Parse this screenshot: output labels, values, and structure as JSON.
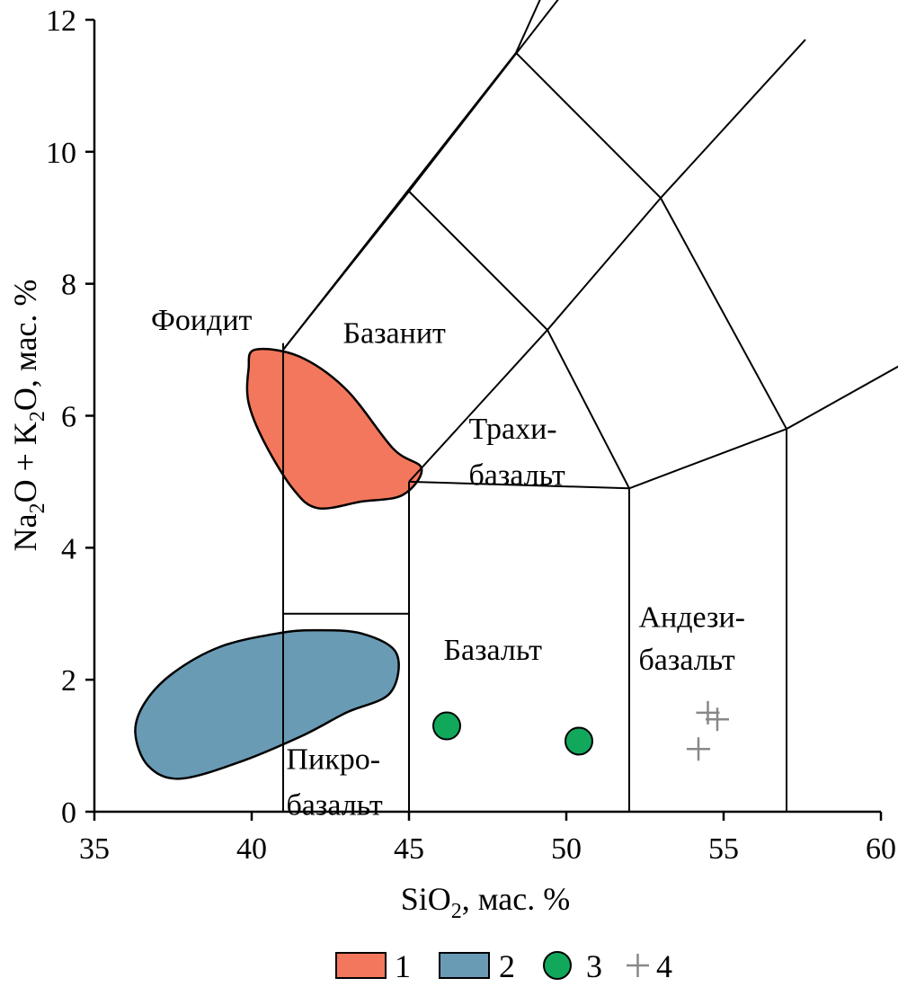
{
  "chart_data": {
    "type": "scatter",
    "diagram": "TAS",
    "xlim": [
      35,
      60
    ],
    "ylim": [
      0,
      12
    ],
    "x_ticks": [
      35,
      40,
      45,
      50,
      55,
      60
    ],
    "y_ticks": [
      0,
      2,
      4,
      6,
      8,
      10,
      12
    ],
    "x_ticks_labels": [
      "35",
      "40",
      "45",
      "50",
      "55",
      "60"
    ],
    "y_ticks_labels": [
      "0",
      "2",
      "4",
      "6",
      "8",
      "10",
      "12"
    ],
    "xlabel": {
      "main": "SiO",
      "sub": "2",
      "rest": ", мас. %"
    },
    "ylabel": {
      "p1": "Na",
      "s1": "2",
      "p2": "O + K",
      "s2": "2",
      "p3": "O, мас. %"
    },
    "grid": false,
    "legend_position": "bottom",
    "colors": {
      "field_1": "#f3775c",
      "field_2": "#6a9bb5",
      "point_3": "#12a85c",
      "point_4": "#888888",
      "lines": "#000000"
    },
    "boundaries": [
      [
        [
          41,
          0
        ],
        [
          41,
          7
        ]
      ],
      [
        [
          41,
          3
        ],
        [
          45,
          3
        ]
      ],
      [
        [
          45,
          0
        ],
        [
          45,
          5
        ]
      ],
      [
        [
          45,
          5
        ],
        [
          52,
          4.9
        ]
      ],
      [
        [
          52,
          0
        ],
        [
          52,
          4.9
        ]
      ],
      [
        [
          57,
          0
        ],
        [
          57,
          5.8
        ]
      ],
      [
        [
          52,
          4.9
        ],
        [
          57,
          5.8
        ]
      ],
      [
        [
          57,
          5.8
        ],
        [
          63,
          7.4
        ]
      ],
      [
        [
          41,
          7
        ],
        [
          45,
          9.4
        ]
      ],
      [
        [
          45,
          5
        ],
        [
          49.4,
          7.3
        ]
      ],
      [
        [
          49.4,
          7.3
        ],
        [
          53,
          9.3
        ]
      ],
      [
        [
          53,
          9.3
        ],
        [
          57,
          5.8
        ]
      ],
      [
        [
          49.4,
          7.3
        ],
        [
          52,
          4.9
        ]
      ],
      [
        [
          45,
          9.4
        ],
        [
          49.4,
          7.3
        ]
      ],
      [
        [
          41,
          7
        ],
        [
          48.4,
          11.5
        ]
      ],
      [
        [
          48.4,
          11.5
        ],
        [
          53,
          9.3
        ]
      ],
      [
        [
          45,
          9.4
        ],
        [
          52.5,
          14
        ]
      ],
      [
        [
          53,
          9.3
        ],
        [
          57.6,
          11.7
        ]
      ],
      [
        [
          48.4,
          11.5
        ],
        [
          50.3,
          13.5
        ]
      ],
      [
        [
          41,
          7
        ],
        [
          41,
          7.1
        ]
      ]
    ],
    "field_labels": [
      {
        "text": "Фоидит",
        "x": 36.8,
        "y": 7.3
      },
      {
        "text": "Базанит",
        "x": 42.9,
        "y": 7.1
      },
      {
        "text": "Трахи-",
        "x": 46.9,
        "y": 5.65
      },
      {
        "text": "базальт",
        "x": 46.9,
        "y": 4.95
      },
      {
        "text": "Базальт",
        "x": 46.1,
        "y": 2.3
      },
      {
        "text": "Андези-",
        "x": 52.3,
        "y": 2.8
      },
      {
        "text": "базальт",
        "x": 52.3,
        "y": 2.15
      },
      {
        "text": "Пикро-",
        "x": 41.1,
        "y": 0.65
      },
      {
        "text": "базальт",
        "x": 41.1,
        "y": -0.05
      }
    ],
    "series": [
      {
        "name": "1",
        "kind": "field",
        "outline": [
          [
            40.1,
            7.0
          ],
          [
            41.5,
            6.9
          ],
          [
            43.0,
            6.4
          ],
          [
            44.5,
            5.5
          ],
          [
            45.4,
            5.2
          ],
          [
            44.8,
            4.8
          ],
          [
            43.5,
            4.7
          ],
          [
            42.1,
            4.6
          ],
          [
            41.3,
            4.9
          ],
          [
            40.4,
            5.6
          ],
          [
            39.9,
            6.2
          ],
          [
            39.9,
            6.7
          ]
        ]
      },
      {
        "name": "2",
        "kind": "field",
        "outline": [
          [
            37.5,
            2.1
          ],
          [
            39.0,
            2.5
          ],
          [
            40.8,
            2.7
          ],
          [
            42.0,
            2.75
          ],
          [
            43.5,
            2.7
          ],
          [
            44.6,
            2.4
          ],
          [
            44.4,
            1.8
          ],
          [
            43.0,
            1.5
          ],
          [
            41.6,
            1.15
          ],
          [
            39.6,
            0.75
          ],
          [
            37.7,
            0.5
          ],
          [
            36.7,
            0.7
          ],
          [
            36.3,
            1.2
          ],
          [
            36.6,
            1.65
          ]
        ]
      },
      {
        "name": "3",
        "kind": "circle",
        "points": [
          {
            "x": 46.2,
            "y": 1.3
          },
          {
            "x": 50.4,
            "y": 1.07
          }
        ]
      },
      {
        "name": "4",
        "kind": "plus",
        "points": [
          {
            "x": 54.5,
            "y": 1.5
          },
          {
            "x": 54.8,
            "y": 1.4
          },
          {
            "x": 54.2,
            "y": 0.95
          }
        ]
      }
    ]
  }
}
